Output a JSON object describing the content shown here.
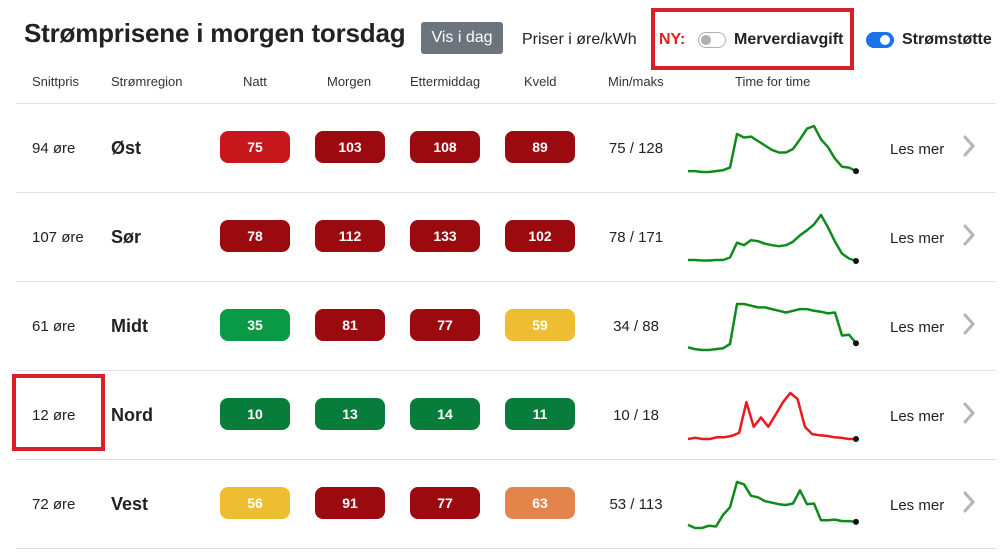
{
  "header": {
    "title": "Strømprisene i morgen torsdag",
    "vis_button": "Vis i dag",
    "unit_label": "Priser i øre/kWh",
    "ny_label": "NY:",
    "mva_label": "Merverdiavgift",
    "stotte_label": "Strømstøtte",
    "mva_toggle": "off",
    "stotte_toggle": "on"
  },
  "columns": {
    "snitt": "Snittpris",
    "region": "Strømregion",
    "natt": "Natt",
    "morgen": "Morgen",
    "ettermiddag": "Ettermiddag",
    "kveld": "Kveld",
    "minmaks": "Min/maks",
    "timefortime": "Time for time"
  },
  "colors": {
    "red": "#c8161d",
    "dark_red": "#9b0a0f",
    "green": "#0a9a46",
    "dark_green": "#087d3b",
    "yellow": "#eebd31",
    "orange": "#e3854a",
    "line_green": "#118a1b",
    "line_red": "#e8191f",
    "highlight": "#d9202a"
  },
  "rows": [
    {
      "snitt": "94 øre",
      "region": "Øst",
      "natt": "75",
      "morgen": "103",
      "ettermiddag": "108",
      "kveld": "89",
      "natt_color": "red",
      "morgen_color": "dark_red",
      "ettermiddag_color": "dark_red",
      "kveld_color": "dark_red",
      "minmaks": "75 / 128",
      "les_mer": "Les mer",
      "line_color": "line_green",
      "hourly": [
        76,
        76,
        75,
        75,
        76,
        77,
        80,
        118,
        114,
        115,
        110,
        105,
        100,
        97,
        97,
        101,
        112,
        124,
        127,
        112,
        103,
        90,
        81,
        80,
        76
      ]
    },
    {
      "snitt": "107 øre",
      "region": "Sør",
      "natt": "78",
      "morgen": "112",
      "ettermiddag": "133",
      "kveld": "102",
      "natt_color": "dark_red",
      "morgen_color": "dark_red",
      "ettermiddag_color": "dark_red",
      "kveld_color": "dark_red",
      "minmaks": "78 / 171",
      "les_mer": "Les mer",
      "line_color": "line_green",
      "hourly": [
        80,
        80,
        79,
        79,
        80,
        80,
        85,
        115,
        110,
        120,
        118,
        113,
        110,
        108,
        110,
        117,
        130,
        140,
        152,
        171,
        146,
        117,
        93,
        83,
        78
      ]
    },
    {
      "snitt": "61 øre",
      "region": "Midt",
      "natt": "35",
      "morgen": "81",
      "ettermiddag": "77",
      "kveld": "59",
      "natt_color": "green",
      "morgen_color": "dark_red",
      "ettermiddag_color": "dark_red",
      "kveld_color": "yellow",
      "minmaks": "34 / 88",
      "les_mer": "Les mer",
      "line_color": "line_green",
      "hourly": [
        37,
        35,
        34,
        34,
        35,
        36,
        41,
        88,
        88,
        86,
        84,
        84,
        82,
        80,
        78,
        80,
        82,
        82,
        80,
        79,
        77,
        78,
        51,
        52,
        42
      ]
    },
    {
      "snitt": "12 øre",
      "region": "Nord",
      "natt": "10",
      "morgen": "13",
      "ettermiddag": "14",
      "kveld": "11",
      "natt_color": "dark_green",
      "morgen_color": "dark_green",
      "ettermiddag_color": "dark_green",
      "kveld_color": "dark_green",
      "minmaks": "10 / 18",
      "les_mer": "Les mer",
      "line_color": "line_red",
      "hourly": [
        10,
        10.2,
        10,
        10,
        10.3,
        10.3,
        10.5,
        11,
        16,
        12,
        13.5,
        12,
        14,
        16,
        17.5,
        16.5,
        12,
        10.8,
        10.6,
        10.5,
        10.3,
        10.2,
        10,
        10
      ]
    },
    {
      "snitt": "72 øre",
      "region": "Vest",
      "natt": "56",
      "morgen": "91",
      "ettermiddag": "77",
      "kveld": "63",
      "natt_color": "yellow",
      "morgen_color": "dark_red",
      "ettermiddag_color": "dark_red",
      "kveld_color": "orange",
      "minmaks": "53 / 113",
      "les_mer": "Les mer",
      "line_color": "line_green",
      "hourly": [
        57,
        53,
        53,
        56,
        55,
        70,
        80,
        113,
        110,
        95,
        93,
        88,
        86,
        84,
        83,
        85,
        102,
        84,
        85,
        63,
        63,
        64,
        62,
        62,
        61
      ]
    }
  ]
}
